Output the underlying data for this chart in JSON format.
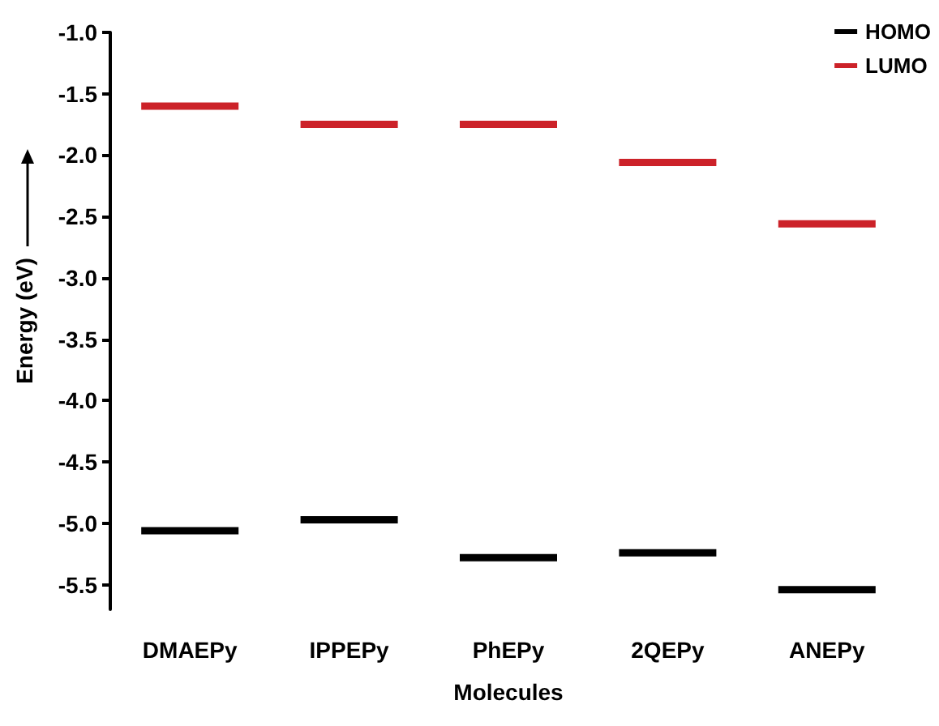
{
  "chart_data": {
    "type": "box",
    "xlabel": "Molecules",
    "ylabel": "Energy (eV)",
    "categories": [
      "DMAEPy",
      "IPPEPy",
      "PhEPy",
      "2QEPy",
      "ANEPy"
    ],
    "series": [
      {
        "name": "HOMO",
        "color": "#000000",
        "boxes": [
          {
            "low": -5.06,
            "q1": -5.06,
            "median": -5.06,
            "q3": -5.06,
            "high": -5.06
          },
          {
            "low": -4.97,
            "q1": -4.97,
            "median": -4.97,
            "q3": -4.97,
            "high": -4.97
          },
          {
            "low": -5.28,
            "q1": -5.28,
            "median": -5.28,
            "q3": -5.28,
            "high": -5.28
          },
          {
            "low": -5.24,
            "q1": -5.24,
            "median": -5.24,
            "q3": -5.24,
            "high": -5.24
          },
          {
            "low": -5.54,
            "q1": -5.54,
            "median": -5.54,
            "q3": -5.54,
            "high": -5.54
          }
        ]
      },
      {
        "name": "LUMO",
        "color": "#cc2229",
        "boxes": [
          {
            "low": -1.6,
            "q1": -1.6,
            "median": -1.6,
            "q3": -1.6,
            "high": -1.6
          },
          {
            "low": -1.75,
            "q1": -1.75,
            "median": -1.75,
            "q3": -1.75,
            "high": -1.75
          },
          {
            "low": -1.75,
            "q1": -1.75,
            "median": -1.75,
            "q3": -1.75,
            "high": -1.75
          },
          {
            "low": -2.06,
            "q1": -2.06,
            "median": -2.06,
            "q3": -2.06,
            "high": -2.06
          },
          {
            "low": -2.56,
            "q1": -2.56,
            "median": -2.56,
            "q3": -2.56,
            "high": -2.56
          }
        ]
      }
    ],
    "ylim": [
      -5.7,
      -1.0
    ],
    "yticks": [
      {
        "value": -1.0,
        "label": "-1.0"
      },
      {
        "value": -1.5,
        "label": "-1.5"
      },
      {
        "value": -2.0,
        "label": "-2.0"
      },
      {
        "value": -2.5,
        "label": "-2.5"
      },
      {
        "value": -3.0,
        "label": "-3.0"
      },
      {
        "value": -3.5,
        "label": "-3.5"
      },
      {
        "value": -4.0,
        "label": "-4.0"
      },
      {
        "value": -4.5,
        "label": "-4.5"
      },
      {
        "value": -5.0,
        "label": "-5.0"
      },
      {
        "value": -5.5,
        "label": "-5.5"
      }
    ],
    "grid": false,
    "legend": "top right"
  }
}
